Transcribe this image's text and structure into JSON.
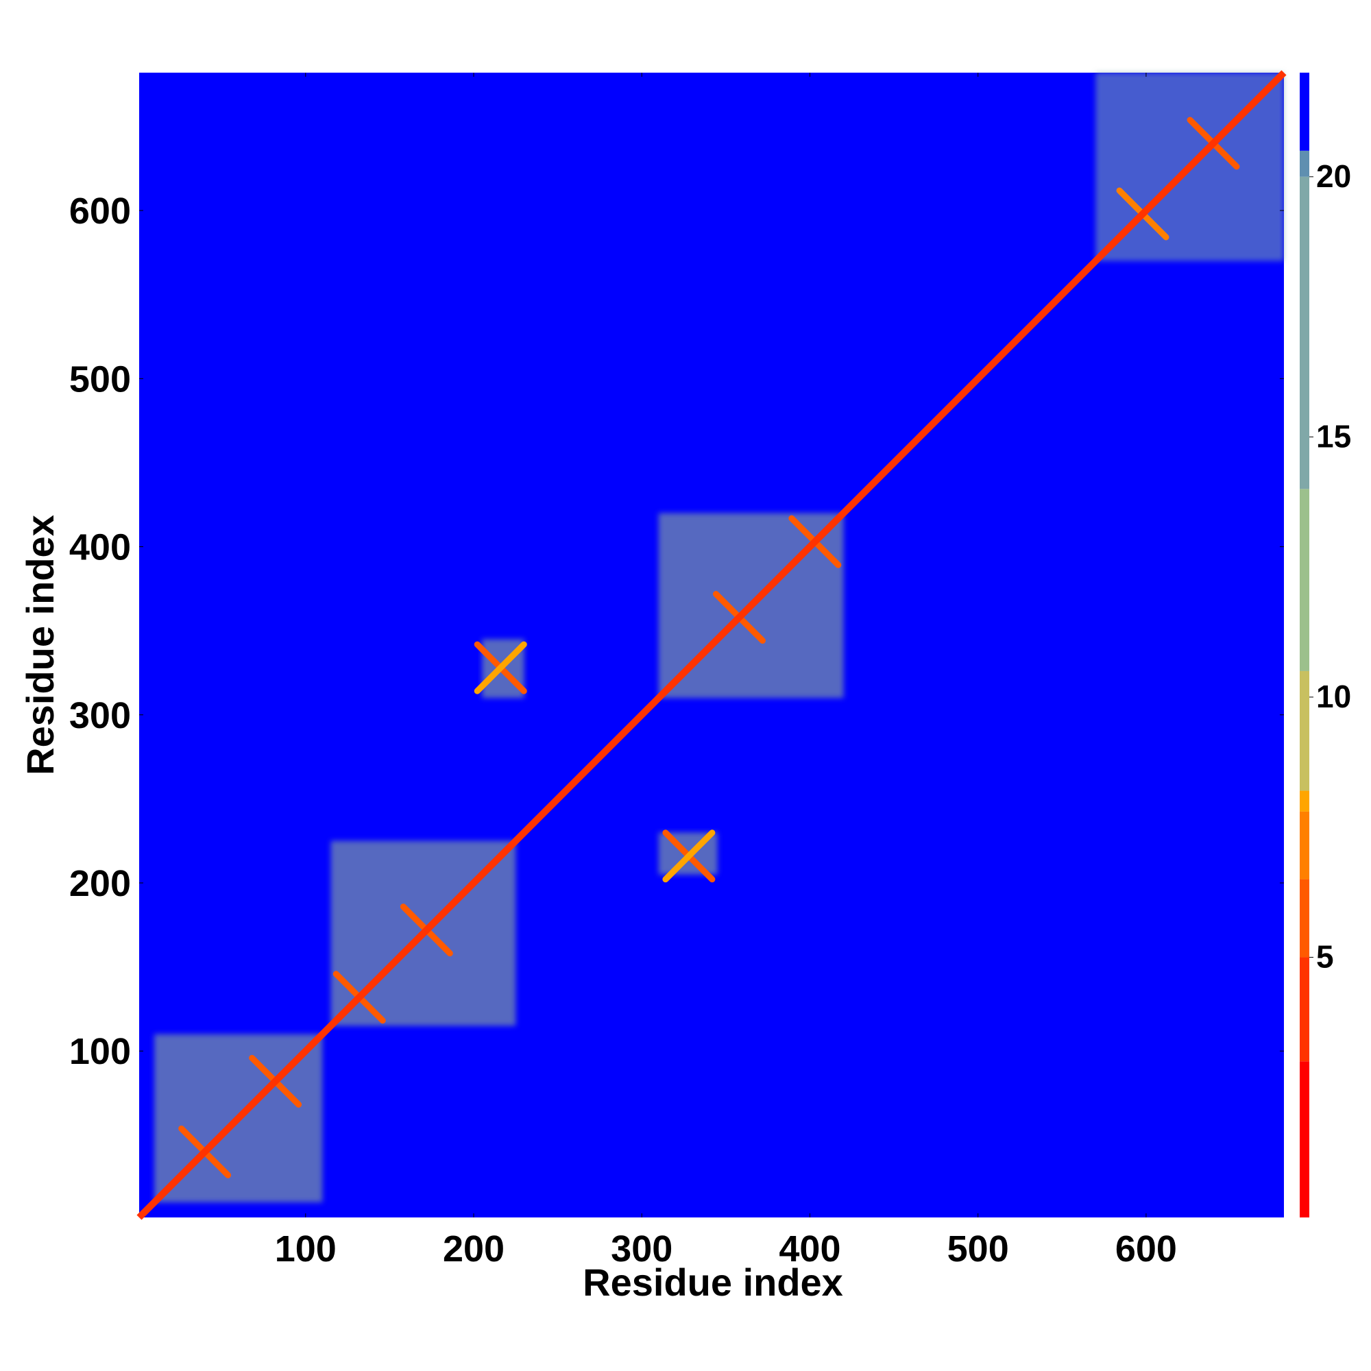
{
  "chart_data": {
    "type": "heatmap",
    "title": "",
    "xlabel": "Residue index",
    "ylabel": "Residue index",
    "xlim": [
      1,
      682
    ],
    "ylim": [
      1,
      682
    ],
    "x_ticks": [
      100,
      200,
      300,
      400,
      500,
      600
    ],
    "y_ticks": [
      100,
      200,
      300,
      400,
      500,
      600
    ],
    "colorbar": {
      "min": 0,
      "max": 22,
      "ticks": [
        5,
        10,
        15,
        20
      ],
      "colors": [
        "#ff0000",
        "#ff3300",
        "#ff5a00",
        "#ff8000",
        "#ffa500",
        "#c8c060",
        "#9cc08c",
        "#80a8a8",
        "#5f8fb0",
        "#0000ff"
      ],
      "stops": [
        0,
        3,
        5,
        6.5,
        7.8,
        8.2,
        10.5,
        14,
        20,
        20.5
      ]
    },
    "background_color": "#0000ff",
    "diagonal": {
      "from": [
        1,
        1
      ],
      "to": [
        682,
        682
      ],
      "value": 3
    },
    "domain_blocks": [
      {
        "x": [
          10,
          110
        ],
        "y": [
          10,
          110
        ],
        "value": 12
      },
      {
        "x": [
          115,
          225
        ],
        "y": [
          115,
          225
        ],
        "value": 12
      },
      {
        "x": [
          310,
          420
        ],
        "y": [
          310,
          420
        ],
        "value": 12
      },
      {
        "x": [
          570,
          682
        ],
        "y": [
          570,
          682
        ],
        "value": 14
      }
    ],
    "cross_contacts": [
      {
        "x": [
          205,
          230
        ],
        "y": [
          310,
          345
        ],
        "value": 12
      },
      {
        "x": [
          310,
          345
        ],
        "y": [
          205,
          230
        ],
        "value": 12
      }
    ],
    "strong_contacts": [
      {
        "center": [
          40,
          40
        ],
        "value": 5
      },
      {
        "center": [
          82,
          82
        ],
        "value": 5
      },
      {
        "center": [
          132,
          132
        ],
        "value": 5
      },
      {
        "center": [
          172,
          172
        ],
        "value": 5
      },
      {
        "center": [
          358,
          358
        ],
        "value": 5
      },
      {
        "center": [
          403,
          403
        ],
        "value": 5
      },
      {
        "center": [
          640,
          640
        ],
        "value": 5
      },
      {
        "center": [
          598,
          598
        ],
        "value": 7
      },
      {
        "center": [
          216,
          328
        ],
        "value": 6
      },
      {
        "center": [
          328,
          216
        ],
        "value": 6
      }
    ]
  }
}
